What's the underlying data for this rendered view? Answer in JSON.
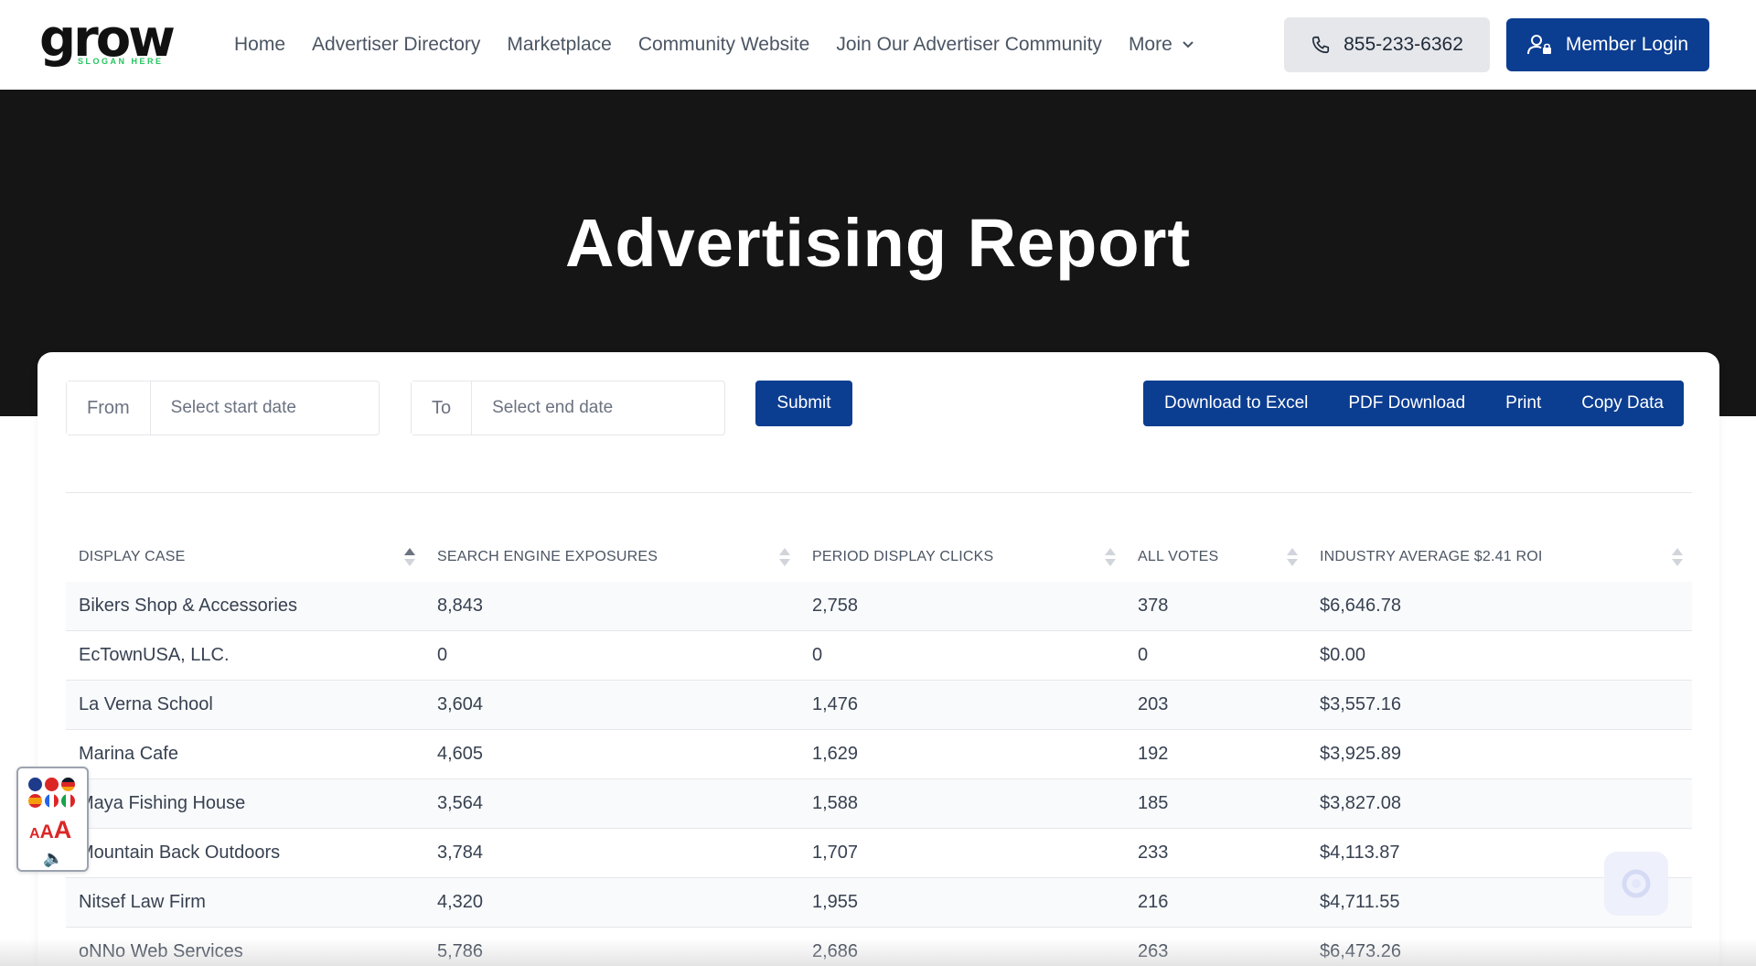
{
  "brand": {
    "logo_text": "grow",
    "slogan": "SLOGAN HERE",
    "accent_color": "#22c55e",
    "primary_color": "#0b3d91"
  },
  "nav": {
    "items": [
      {
        "label": "Home"
      },
      {
        "label": "Advertiser Directory"
      },
      {
        "label": "Marketplace"
      },
      {
        "label": "Community Website"
      },
      {
        "label": "Join Our Advertiser Community"
      },
      {
        "label": "More",
        "icon": "chevron-down-icon"
      }
    ],
    "phone": {
      "label": "855-233-6362",
      "icon": "phone-icon"
    },
    "login": {
      "label": "Member Login",
      "icon": "user-lock-icon"
    }
  },
  "hero": {
    "title": "Advertising Report"
  },
  "filters": {
    "from_label": "From",
    "from_placeholder": "Select start date",
    "to_label": "To",
    "to_placeholder": "Select end date",
    "submit_label": "Submit"
  },
  "export": {
    "excel": "Download to Excel",
    "pdf": "PDF Download",
    "print": "Print",
    "copy": "Copy Data"
  },
  "table": {
    "columns": [
      {
        "label": "DISPLAY CASE",
        "sort": "asc"
      },
      {
        "label": "SEARCH ENGINE EXPOSURES",
        "sort": "none"
      },
      {
        "label": "PERIOD DISPLAY CLICKS",
        "sort": "none"
      },
      {
        "label": "ALL VOTES",
        "sort": "none"
      },
      {
        "label": "INDUSTRY AVERAGE $2.41 ROI",
        "sort": "none"
      }
    ],
    "rows": [
      [
        "Bikers Shop & Accessories",
        "8,843",
        "2,758",
        "378",
        "$6,646.78"
      ],
      [
        "EcTownUSA, LLC.",
        "0",
        "0",
        "0",
        "$0.00"
      ],
      [
        "La Verna School",
        "3,604",
        "1,476",
        "203",
        "$3,557.16"
      ],
      [
        "Marina Cafe",
        "4,605",
        "1,629",
        "192",
        "$3,925.89"
      ],
      [
        "Maya Fishing House",
        "3,564",
        "1,588",
        "185",
        "$3,827.08"
      ],
      [
        "Mountain Back Outdoors",
        "3,784",
        "1,707",
        "233",
        "$4,113.87"
      ],
      [
        "Nitsef Law Firm",
        "4,320",
        "1,955",
        "216",
        "$4,711.55"
      ],
      [
        "oNNo Web Services",
        "5,786",
        "2,686",
        "263",
        "$6,473.26"
      ]
    ]
  },
  "accessibility": {
    "font_size_label": "AAA",
    "flag_colors": [
      "#1e3a8a",
      "#dc2626",
      "#111827",
      "#f59e0b",
      "#2563eb",
      "#16a34a"
    ]
  }
}
